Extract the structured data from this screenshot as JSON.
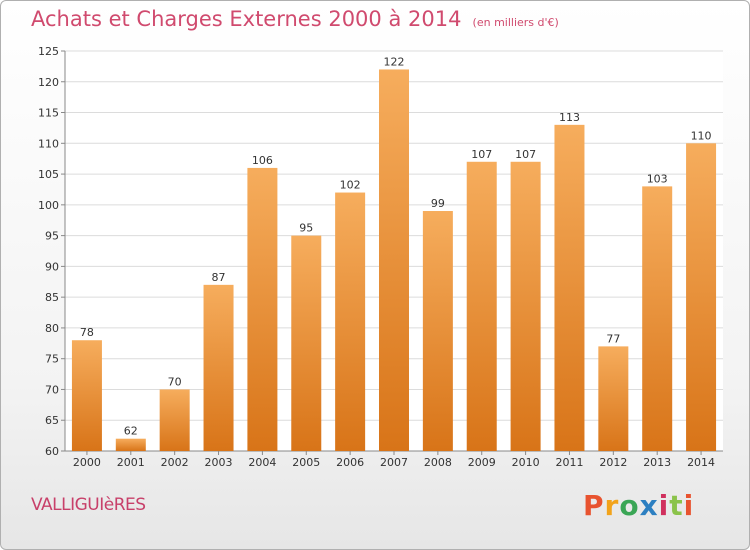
{
  "header": {
    "title": "Achats et Charges Externes 2000 à 2014",
    "unit": "(en milliers d'€)"
  },
  "footer": {
    "town": "VALLIGUIèRES",
    "brand": "Proxiti",
    "brand_colors": [
      "#e8532f",
      "#f2a31b",
      "#3aa655",
      "#2c7fc1",
      "#d0305d",
      "#8bc34a",
      "#e8532f"
    ]
  },
  "colors": {
    "bar_light": "#f6ad5d",
    "bar_dark": "#d87418",
    "title": "#d04a6e"
  },
  "chart_data": {
    "type": "bar",
    "title": "Achats et Charges Externes 2000 à 2014",
    "categories": [
      "2000",
      "2001",
      "2002",
      "2003",
      "2004",
      "2005",
      "2006",
      "2007",
      "2008",
      "2009",
      "2010",
      "2011",
      "2012",
      "2013",
      "2014"
    ],
    "values": [
      78,
      62,
      70,
      87,
      106,
      95,
      102,
      122,
      99,
      107,
      107,
      113,
      77,
      103,
      110
    ],
    "ylim": [
      60,
      125
    ],
    "yticks": [
      60,
      65,
      70,
      75,
      80,
      85,
      90,
      95,
      100,
      105,
      110,
      115,
      120,
      125
    ],
    "grid": true
  }
}
